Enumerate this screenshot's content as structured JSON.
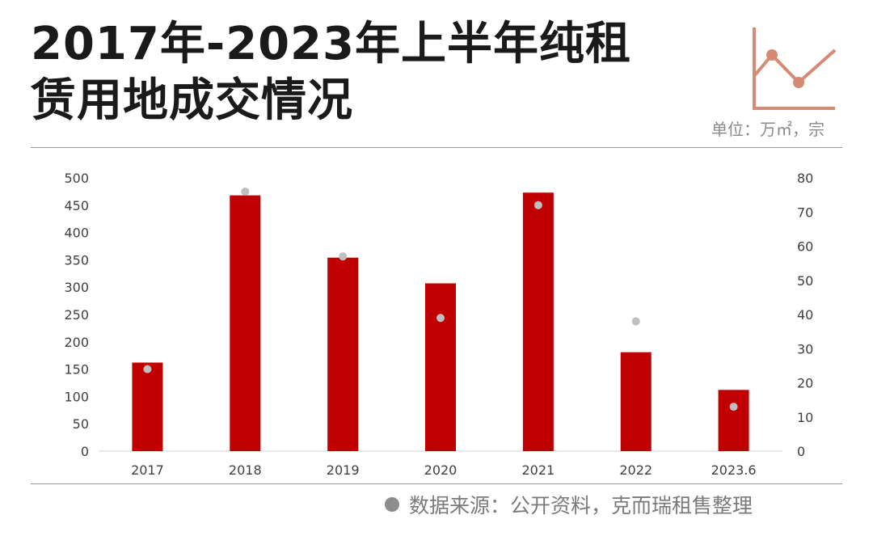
{
  "header": {
    "title_line1": "2017年-2023年上半年纯租",
    "title_line2": "赁用地成交情况",
    "unit": "单位：万㎡，宗"
  },
  "footer": {
    "source": "数据来源：公开资料，克而瑞租售整理"
  },
  "colors": {
    "bar": "#c00000",
    "dot": "#bfbfbf",
    "deco": "#d48a73"
  },
  "icons": {
    "deco": "line-chart-icon",
    "source": "dot-icon"
  },
  "chart_data": {
    "type": "bar",
    "title": "2017年-2023年上半年纯租赁用地成交情况",
    "categories": [
      "2017",
      "2018",
      "2019",
      "2020",
      "2021",
      "2022",
      "2023.6"
    ],
    "series": [
      {
        "type": "bar",
        "axis": "left",
        "values": [
          162,
          468,
          354,
          307,
          473,
          181,
          112
        ]
      },
      {
        "type": "scatter",
        "axis": "right",
        "values": [
          24,
          76,
          57,
          39,
          72,
          38,
          13
        ]
      }
    ],
    "ylim_left": [
      0,
      500
    ],
    "yticks_left": [
      "0",
      "50",
      "100",
      "150",
      "200",
      "250",
      "300",
      "350",
      "400",
      "450",
      "500"
    ],
    "ylim_right": [
      0,
      80
    ],
    "yticks_right": [
      "0",
      "10",
      "20",
      "30",
      "40",
      "50",
      "60",
      "70",
      "80"
    ],
    "grid": false,
    "legend": "none"
  }
}
